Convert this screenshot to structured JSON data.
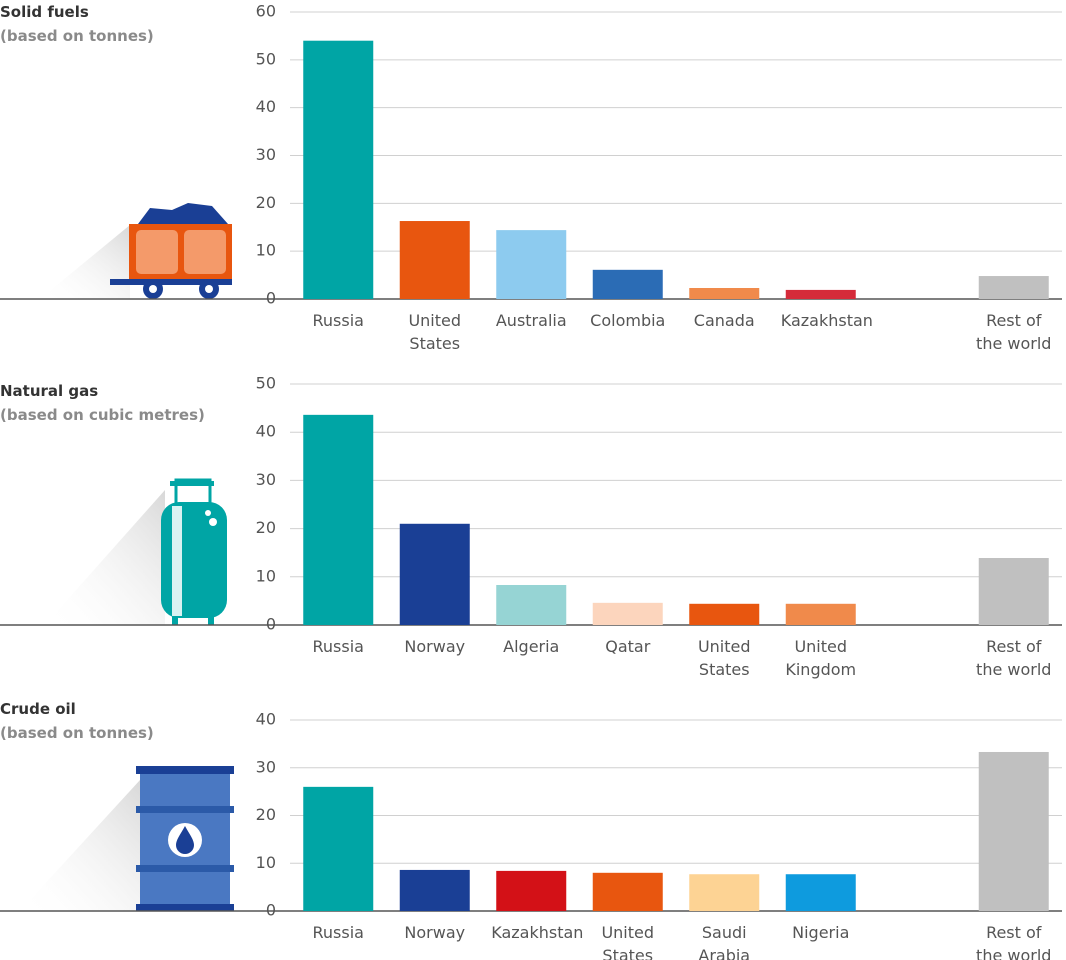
{
  "chart_data": [
    {
      "type": "bar",
      "title": "Solid fuels",
      "subtitle": "(based on tonnes)",
      "categories": [
        "Russia",
        "United States",
        "Australia",
        "Colombia",
        "Canada",
        "Kazakhstan",
        null,
        "Rest of the world"
      ],
      "values": [
        54,
        16.3,
        14.4,
        6.1,
        2.3,
        1.9,
        null,
        4.8
      ],
      "colors": [
        "#00a5a5",
        "#e8560f",
        "#8dcbef",
        "#2b6cb5",
        "#f08a4b",
        "#d52b3a",
        null,
        "#c0c0c0"
      ],
      "ylim": [
        0,
        60
      ],
      "yticks": [
        0,
        10,
        20,
        30,
        40,
        50,
        60
      ],
      "grid": true
    },
    {
      "type": "bar",
      "title": "Natural gas",
      "subtitle": "(based on cubic metres)",
      "categories": [
        "Russia",
        "Norway",
        "Algeria",
        "Qatar",
        "United States",
        "United Kingdom",
        null,
        "Rest of the world"
      ],
      "values": [
        43.6,
        21,
        8.3,
        4.6,
        4.4,
        4.4,
        null,
        13.9
      ],
      "colors": [
        "#00a5a5",
        "#1a3f95",
        "#96d4d4",
        "#fcd5bd",
        "#e8560f",
        "#f08a4b",
        null,
        "#c0c0c0"
      ],
      "ylim": [
        0,
        50
      ],
      "yticks": [
        0,
        10,
        20,
        30,
        40,
        50
      ],
      "grid": true
    },
    {
      "type": "bar",
      "title": "Crude oil",
      "subtitle": "(based on tonnes)",
      "categories": [
        "Russia",
        "Norway",
        "Kazakhstan",
        "United States",
        "Saudi Arabia",
        "Nigeria",
        null,
        "Rest of the world"
      ],
      "values": [
        26,
        8.6,
        8.4,
        8,
        7.7,
        7.7,
        null,
        33.3
      ],
      "colors": [
        "#00a5a5",
        "#1a3f95",
        "#d31117",
        "#e8560f",
        "#fdd394",
        "#0e9bde",
        null,
        "#c0c0c0"
      ],
      "ylim": [
        0,
        40
      ],
      "yticks": [
        0,
        10,
        20,
        30,
        40
      ],
      "grid": true
    }
  ]
}
